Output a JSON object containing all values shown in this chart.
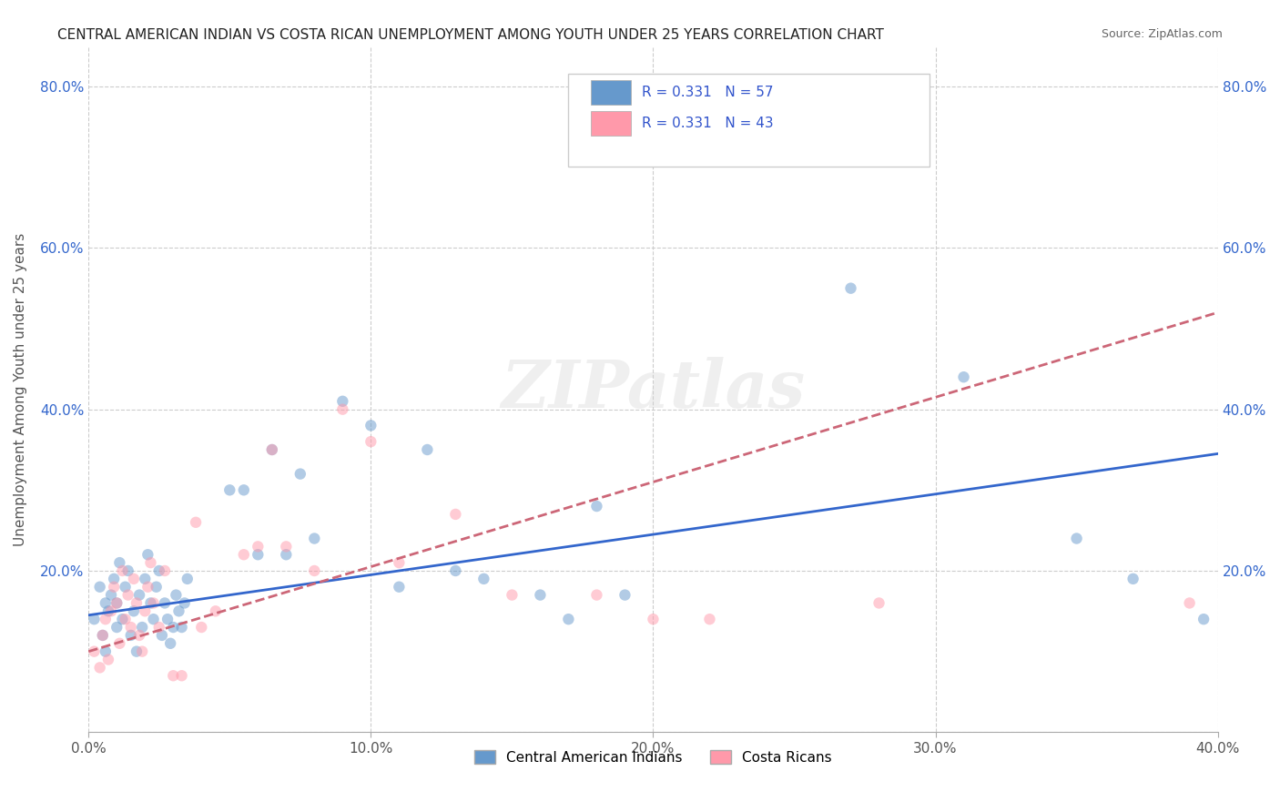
{
  "title": "CENTRAL AMERICAN INDIAN VS COSTA RICAN UNEMPLOYMENT AMONG YOUTH UNDER 25 YEARS CORRELATION CHART",
  "source": "Source: ZipAtlas.com",
  "ylabel": "Unemployment Among Youth under 25 years",
  "xlabel": "",
  "xlim": [
    0.0,
    0.4
  ],
  "ylim": [
    0.0,
    0.85
  ],
  "xticks": [
    0.0,
    0.1,
    0.2,
    0.3,
    0.4
  ],
  "yticks": [
    0.0,
    0.2,
    0.4,
    0.6,
    0.8
  ],
  "xticklabels": [
    "0.0%",
    "10.0%",
    "20.0%",
    "30.0%",
    "40.0%"
  ],
  "yticklabels": [
    "",
    "20.0%",
    "40.0%",
    "60.0%",
    "80.0%"
  ],
  "bg_color": "#ffffff",
  "grid_color": "#cccccc",
  "legend_label1": "Central American Indians",
  "legend_label2": "Costa Ricans",
  "legend_r1": "R = 0.331",
  "legend_n1": "N = 57",
  "legend_r2": "R = 0.331",
  "legend_n2": "N = 43",
  "watermark": "ZIPatlas",
  "color_blue": "#6699cc",
  "color_pink": "#ff99aa",
  "color_blue_line": "#3366cc",
  "color_pink_line": "#cc6677",
  "scatter_alpha": 0.5,
  "scatter_size": 80,
  "blue_x": [
    0.002,
    0.004,
    0.005,
    0.006,
    0.006,
    0.007,
    0.008,
    0.009,
    0.01,
    0.01,
    0.011,
    0.012,
    0.013,
    0.014,
    0.015,
    0.016,
    0.017,
    0.018,
    0.019,
    0.02,
    0.021,
    0.022,
    0.023,
    0.024,
    0.025,
    0.026,
    0.027,
    0.028,
    0.029,
    0.03,
    0.031,
    0.032,
    0.033,
    0.034,
    0.035,
    0.05,
    0.055,
    0.06,
    0.065,
    0.07,
    0.075,
    0.08,
    0.09,
    0.1,
    0.11,
    0.12,
    0.13,
    0.14,
    0.16,
    0.17,
    0.18,
    0.19,
    0.27,
    0.31,
    0.35,
    0.37,
    0.395
  ],
  "blue_y": [
    0.14,
    0.18,
    0.12,
    0.16,
    0.1,
    0.15,
    0.17,
    0.19,
    0.13,
    0.16,
    0.21,
    0.14,
    0.18,
    0.2,
    0.12,
    0.15,
    0.1,
    0.17,
    0.13,
    0.19,
    0.22,
    0.16,
    0.14,
    0.18,
    0.2,
    0.12,
    0.16,
    0.14,
    0.11,
    0.13,
    0.17,
    0.15,
    0.13,
    0.16,
    0.19,
    0.3,
    0.3,
    0.22,
    0.35,
    0.22,
    0.32,
    0.24,
    0.41,
    0.38,
    0.18,
    0.35,
    0.2,
    0.19,
    0.17,
    0.14,
    0.28,
    0.17,
    0.55,
    0.44,
    0.24,
    0.19,
    0.14
  ],
  "pink_x": [
    0.002,
    0.004,
    0.005,
    0.006,
    0.007,
    0.008,
    0.009,
    0.01,
    0.011,
    0.012,
    0.013,
    0.014,
    0.015,
    0.016,
    0.017,
    0.018,
    0.019,
    0.02,
    0.021,
    0.022,
    0.023,
    0.025,
    0.027,
    0.03,
    0.033,
    0.038,
    0.04,
    0.045,
    0.055,
    0.06,
    0.065,
    0.07,
    0.08,
    0.09,
    0.1,
    0.11,
    0.13,
    0.15,
    0.18,
    0.2,
    0.22,
    0.28,
    0.39
  ],
  "pink_y": [
    0.1,
    0.08,
    0.12,
    0.14,
    0.09,
    0.15,
    0.18,
    0.16,
    0.11,
    0.2,
    0.14,
    0.17,
    0.13,
    0.19,
    0.16,
    0.12,
    0.1,
    0.15,
    0.18,
    0.21,
    0.16,
    0.13,
    0.2,
    0.07,
    0.07,
    0.26,
    0.13,
    0.15,
    0.22,
    0.23,
    0.35,
    0.23,
    0.2,
    0.4,
    0.36,
    0.21,
    0.27,
    0.17,
    0.17,
    0.14,
    0.14,
    0.16,
    0.16
  ],
  "blue_trendline_x": [
    0.0,
    0.4
  ],
  "blue_trendline_y": [
    0.145,
    0.345
  ],
  "pink_trendline_x": [
    0.0,
    0.4
  ],
  "pink_trendline_y": [
    0.1,
    0.52
  ]
}
